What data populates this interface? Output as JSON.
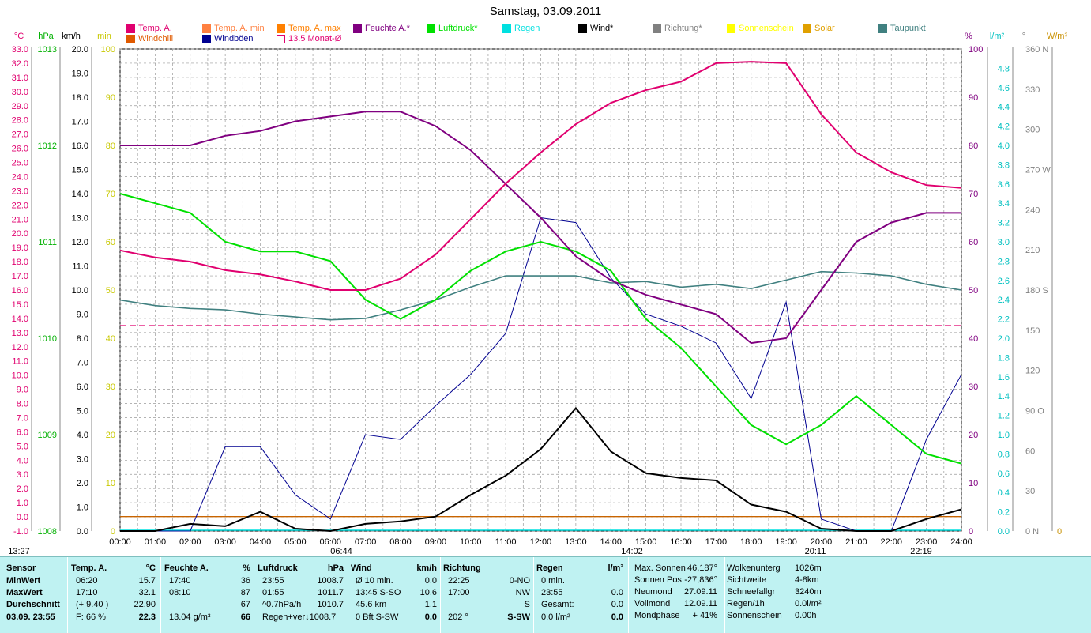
{
  "title": "Samstag, 03.09.2011",
  "legend": [
    {
      "label": "Temp. A.",
      "color": "#e0006f"
    },
    {
      "label": "Windchill",
      "color": "#e05a00"
    },
    {
      "label": "Temp. A. min",
      "color": "#ff8040"
    },
    {
      "label": "Windböen",
      "color": "#000090"
    },
    {
      "label": "Temp. A. max",
      "color": "#ff8000"
    },
    {
      "label": "13.5 Monat-Ø",
      "color": "#e0006f"
    },
    {
      "label": "Feuchte A.*",
      "color": "#800080"
    },
    {
      "label": "Luftdruck*",
      "color": "#00e000"
    },
    {
      "label": "Regen",
      "color": "#00e0e0"
    },
    {
      "label": "Wind*",
      "color": "#000000"
    },
    {
      "label": "Richtung*",
      "color": "#808080"
    },
    {
      "label": "Sonnenschein",
      "color": "#ffff00"
    },
    {
      "label": "Solar",
      "color": "#e0a000"
    },
    {
      "label": "Taupunkt",
      "color": "#408080"
    }
  ],
  "axis_units": {
    "temp": "°C",
    "hpa": "hPa",
    "kmh": "km/h",
    "min": "min",
    "pct": "%",
    "rain": "l/m²",
    "deg": "°",
    "wm2": "W/m²"
  },
  "colors": {
    "temp": "#e0006f",
    "hpa": "#00b000",
    "kmh": "#000000",
    "min": "#c8c800",
    "pct": "#800080",
    "rain": "#00c0c0",
    "deg": "#808080",
    "wm2": "#c89000"
  },
  "axis_ticks": {
    "temp": [
      "33.0",
      "32.0",
      "31.0",
      "30.0",
      "29.0",
      "28.0",
      "27.0",
      "26.0",
      "25.0",
      "24.0",
      "23.0",
      "22.0",
      "21.0",
      "20.0",
      "19.0",
      "18.0",
      "17.0",
      "16.0",
      "15.0",
      "14.0",
      "13.0",
      "12.0",
      "11.0",
      "10.0",
      "9.0",
      "8.0",
      "7.0",
      "6.0",
      "5.0",
      "4.0",
      "3.0",
      "2.0",
      "1.0",
      "0.0",
      "-1.0"
    ],
    "hpa": [
      "1013",
      "1012",
      "1011",
      "1010",
      "1009",
      "1008"
    ],
    "kmh": [
      "20.0",
      "19.0",
      "18.0",
      "17.0",
      "16.0",
      "15.0",
      "14.0",
      "13.0",
      "12.0",
      "11.0",
      "10.0",
      "9.0",
      "8.0",
      "7.0",
      "6.0",
      "5.0",
      "4.0",
      "3.0",
      "2.0",
      "1.0",
      "0.0"
    ],
    "min": [
      "100",
      "90",
      "80",
      "70",
      "60",
      "50",
      "40",
      "30",
      "20",
      "10",
      "0"
    ],
    "pct": [
      "100",
      "90",
      "80",
      "70",
      "60",
      "50",
      "40",
      "30",
      "20",
      "10",
      "0"
    ],
    "rain": [
      "4.8",
      "4.6",
      "4.4",
      "4.2",
      "4.0",
      "3.8",
      "3.6",
      "3.4",
      "3.2",
      "3.0",
      "2.8",
      "2.6",
      "2.4",
      "2.2",
      "2.0",
      "1.8",
      "1.6",
      "1.4",
      "1.2",
      "1.0",
      "0.8",
      "0.6",
      "0.4",
      "0.2",
      "0.0"
    ],
    "deg": [
      "360 N",
      "330",
      "300",
      "270 W",
      "240",
      "210",
      "180 S",
      "150",
      "120",
      "90 O",
      "60",
      "30",
      "0 N"
    ],
    "wm2": [
      "0"
    ],
    "time": [
      "00:00",
      "01:00",
      "02:00",
      "03:00",
      "04:00",
      "05:00",
      "06:00",
      "07:00",
      "08:00",
      "09:00",
      "10:00",
      "11:00",
      "12:00",
      "13:00",
      "14:00",
      "15:00",
      "16:00",
      "17:00",
      "18:00",
      "19:00",
      "20:00",
      "21:00",
      "22:00",
      "23:00",
      "24:00"
    ]
  },
  "time_events": {
    "moonrise": "13:27",
    "sunrise": "06:44",
    "transit": "14:02",
    "sunset": "20:11",
    "moonset": "22:19"
  },
  "chart_data": {
    "type": "line",
    "title": "Samstag, 03.09.2011",
    "x_range": [
      "00:00",
      "24:00"
    ],
    "temp_ylim": [
      -1,
      33
    ],
    "kmh_ylim": [
      0,
      20
    ],
    "pct_ylim": [
      0,
      100
    ],
    "hpa_ylim": [
      1008,
      1013
    ],
    "monthly_avg_temp": 13.5,
    "series": [
      {
        "name": "Temp. A.",
        "unit": "°C",
        "x": [
          0,
          1,
          2,
          3,
          4,
          5,
          6,
          7,
          8,
          9,
          10,
          11,
          12,
          13,
          14,
          15,
          16,
          17,
          18,
          19,
          20,
          21,
          22,
          23,
          24
        ],
        "y": [
          18.8,
          18.3,
          18.0,
          17.4,
          17.1,
          16.6,
          16.0,
          16.0,
          16.8,
          18.5,
          21.0,
          23.5,
          25.7,
          27.7,
          29.2,
          30.1,
          30.7,
          32.0,
          32.1,
          32.0,
          28.4,
          25.7,
          24.3,
          23.4,
          23.2
        ]
      },
      {
        "name": "Feuchte A.*",
        "unit": "%",
        "x": [
          0,
          1,
          2,
          3,
          4,
          5,
          6,
          7,
          8,
          9,
          10,
          11,
          12,
          13,
          14,
          15,
          16,
          17,
          18,
          19,
          20,
          21,
          22,
          23,
          24
        ],
        "y": [
          80,
          80,
          80,
          82,
          83,
          85,
          86,
          87,
          87,
          84,
          79,
          72,
          65,
          57,
          52,
          49,
          47,
          45,
          39,
          40,
          50,
          60,
          64,
          66,
          66
        ]
      },
      {
        "name": "Luftdruck*",
        "unit": "hPa",
        "x": [
          0,
          1,
          2,
          3,
          4,
          5,
          6,
          7,
          8,
          9,
          10,
          11,
          12,
          13,
          14,
          15,
          16,
          17,
          18,
          19,
          20,
          21,
          22,
          23,
          24
        ],
        "y": [
          1011.5,
          1011.4,
          1011.3,
          1011.0,
          1010.9,
          1010.9,
          1010.8,
          1010.4,
          1010.2,
          1010.4,
          1010.7,
          1010.9,
          1011.0,
          1010.9,
          1010.7,
          1010.2,
          1009.9,
          1009.5,
          1009.1,
          1008.9,
          1009.1,
          1009.4,
          1009.1,
          1008.8,
          1008.7
        ]
      },
      {
        "name": "Taupunkt",
        "unit": "°C",
        "x": [
          0,
          1,
          2,
          3,
          4,
          5,
          6,
          7,
          8,
          9,
          10,
          11,
          12,
          13,
          14,
          15,
          16,
          17,
          18,
          19,
          20,
          21,
          22,
          23,
          24
        ],
        "y": [
          15.3,
          14.9,
          14.7,
          14.6,
          14.3,
          14.1,
          13.9,
          14.0,
          14.6,
          15.3,
          16.2,
          17.0,
          17.0,
          17.0,
          16.5,
          16.6,
          16.2,
          16.4,
          16.1,
          16.7,
          17.3,
          17.2,
          17.0,
          16.4,
          16.0
        ]
      },
      {
        "name": "Wind*",
        "unit": "km/h",
        "x": [
          0,
          1,
          2,
          3,
          4,
          5,
          6,
          7,
          8,
          9,
          10,
          11,
          12,
          13,
          14,
          15,
          16,
          17,
          18,
          19,
          20,
          21,
          22,
          23,
          24
        ],
        "y": [
          0,
          0,
          0.3,
          0.2,
          0.8,
          0.1,
          0,
          0.3,
          0.4,
          0.6,
          1.5,
          2.3,
          3.4,
          5.1,
          3.3,
          2.4,
          2.2,
          2.1,
          1.1,
          0.8,
          0.1,
          0,
          0,
          0.5,
          0.9
        ]
      },
      {
        "name": "Windböen",
        "unit": "km/h",
        "x": [
          0,
          1,
          2,
          3,
          4,
          5,
          6,
          7,
          8,
          9,
          10,
          11,
          12,
          13,
          14,
          15,
          16,
          17,
          18,
          19,
          20,
          21,
          22,
          23,
          24
        ],
        "y": [
          0,
          0,
          0,
          3.5,
          3.5,
          1.5,
          0.5,
          4.0,
          3.8,
          5.2,
          6.5,
          8.2,
          13.0,
          12.8,
          10.5,
          9.0,
          8.5,
          7.8,
          5.5,
          9.5,
          0.5,
          0,
          0,
          3.8,
          6.5
        ]
      },
      {
        "name": "Temp. A. min",
        "unit": "°C",
        "y": [
          15.7
        ]
      },
      {
        "name": "Temp. A. max",
        "unit": "°C",
        "y": [
          32.1
        ]
      }
    ]
  },
  "panel": {
    "sensor": {
      "header": "Sensor",
      "rows": [
        "MinWert",
        "MaxWert",
        "Durchschnitt"
      ],
      "date": "03.09.  23:55"
    },
    "temp": {
      "header": "Temp. A.",
      "unit": "°C",
      "rows": [
        [
          "06:20",
          "15.7"
        ],
        [
          "17:10",
          "32.1"
        ],
        [
          "(+ 9.40 )",
          "22.90"
        ]
      ],
      "foot_left": "F: 66 %",
      "foot_right": "22.3"
    },
    "hum": {
      "header": "Feuchte A.",
      "unit": "%",
      "rows": [
        [
          "17:40",
          "36"
        ],
        [
          "08:10",
          "87"
        ],
        [
          "",
          "67"
        ]
      ],
      "foot_left": "13.04 g/m³",
      "foot_right": "66"
    },
    "press": {
      "header": "Luftdruck",
      "unit": "hPa",
      "rows": [
        [
          "23:55",
          "1008.7"
        ],
        [
          "01:55",
          "1011.7"
        ],
        [
          "^0.7hPa/h",
          "1010.7"
        ]
      ],
      "foot_left": "Regen+ver↓1008.7",
      "foot_right": ""
    },
    "wind": {
      "header": "Wind",
      "unit": "km/h",
      "rows": [
        [
          "Ø 10 min.",
          "0.0"
        ],
        [
          "13:45   S-SO",
          "10.6"
        ],
        [
          "45.6 km",
          "1.1"
        ]
      ],
      "foot_left": "0 Bft S-SW",
      "foot_right": "0.0"
    },
    "dir": {
      "header": "Richtung",
      "rows": [
        [
          "22:25",
          "0-NO"
        ],
        [
          "17:00",
          "NW"
        ],
        [
          "",
          "S"
        ]
      ],
      "foot_left": "202 °",
      "foot_right": "S-SW"
    },
    "rain": {
      "header": "Regen",
      "unit": "l/m²",
      "rows": [
        [
          "0 min.",
          ""
        ],
        [
          "23:55",
          "0.0"
        ],
        [
          "Gesamt:",
          "0.0"
        ]
      ],
      "foot_left": "0.0 l/m²",
      "foot_right": "0.0"
    },
    "sun": {
      "rows": [
        [
          "Max. Sonnen",
          "46,187°"
        ],
        [
          "Sonnen Pos",
          "-27,836°"
        ],
        [
          "Neumond",
          "27.09.11"
        ],
        [
          "Vollmond",
          "12.09.11"
        ],
        [
          "Mondphase",
          "+ 41%"
        ]
      ]
    },
    "cloud": {
      "rows": [
        [
          "Wolkenunterg",
          "1026m"
        ],
        [
          "Sichtweite",
          "4-8km"
        ],
        [
          "Schneefallgr",
          "3240m"
        ],
        [
          "Regen/1h",
          "0.0l/m²"
        ],
        [
          "Sonnenschein",
          "0.00h"
        ]
      ]
    }
  }
}
